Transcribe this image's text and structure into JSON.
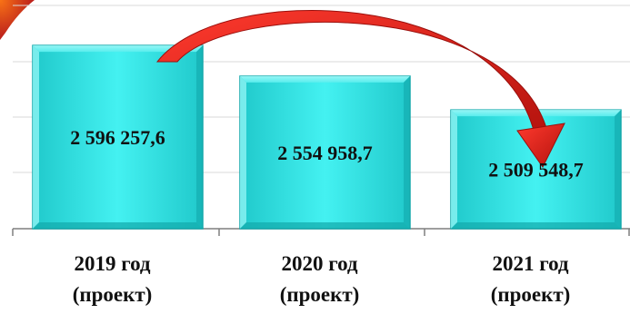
{
  "chart_data": {
    "type": "bar",
    "categories": [
      [
        "2019 год",
        "(проект)"
      ],
      [
        "2020 год",
        "(проект)"
      ],
      [
        "2021 год",
        "(проект)"
      ]
    ],
    "values": [
      2596257.6,
      2554958.7,
      2509548.7
    ],
    "value_labels": [
      "2 596 257,6",
      "2 554 958,7",
      "2 509 548,7"
    ],
    "ylim": [
      2350000,
      2650000
    ],
    "grid": true,
    "legend": "none",
    "title": "",
    "xlabel": "",
    "ylabel": "",
    "colors": {
      "bar_fill": "#33e6e6",
      "bar_light": "#8ff4f4",
      "bar_dark": "#13a9ab",
      "arrow": "#e32018",
      "arrow_dark": "#9a0f0c",
      "grid": "#d9d9d9",
      "axis": "#7f7f7f",
      "corner_accent": "#c2410c"
    },
    "annotation": {
      "type": "arrow",
      "from_category": 0,
      "to_category": 2
    }
  }
}
